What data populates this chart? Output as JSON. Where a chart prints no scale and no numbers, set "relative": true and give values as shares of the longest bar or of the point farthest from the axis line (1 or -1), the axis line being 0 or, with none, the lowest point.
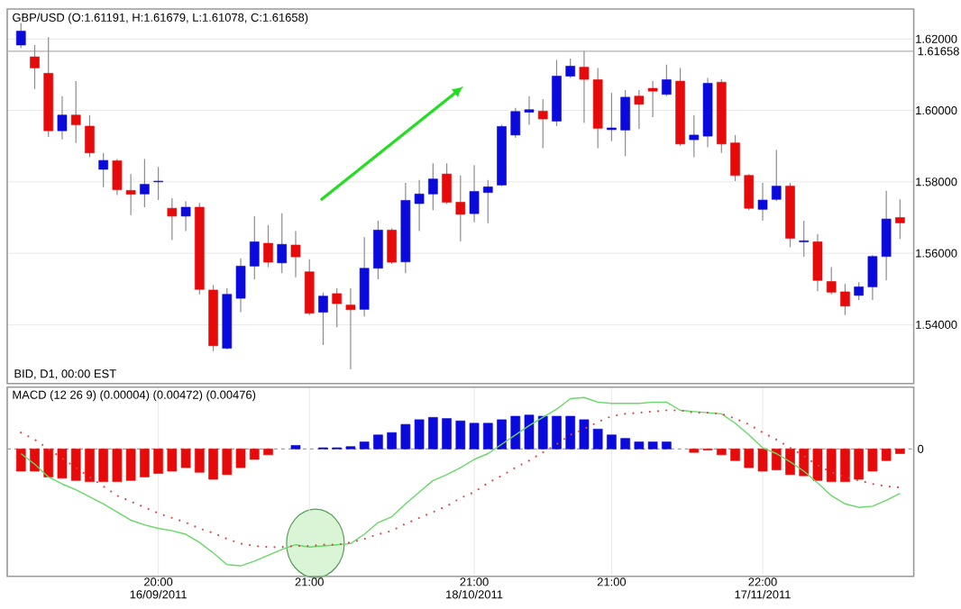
{
  "chart_data": [
    {
      "type": "candlestick",
      "title": "GBP/USD (O:1.61191, H:1.61679, L:1.61078, C:1.61658)",
      "categories": [
        null,
        null,
        null,
        null,
        null,
        null,
        null,
        null,
        null,
        null,
        null,
        null,
        null,
        null,
        null,
        null,
        null,
        null,
        null,
        null,
        null,
        null,
        null,
        null,
        null,
        null,
        null,
        null,
        null,
        null,
        null,
        null,
        null,
        null,
        null,
        null,
        null,
        null,
        null,
        null,
        null,
        null,
        null,
        null,
        null,
        null,
        null,
        null,
        null,
        null,
        null,
        null,
        null,
        null,
        null,
        null,
        null,
        null,
        null,
        null,
        null,
        null,
        null,
        null,
        null
      ],
      "ohlc": [
        [
          1.6183,
          1.6245,
          1.6175,
          1.6222
        ],
        [
          1.615,
          1.6183,
          1.606,
          1.6119
        ],
        [
          1.6104,
          1.6205,
          1.5926,
          1.5943
        ],
        [
          1.5943,
          1.604,
          1.5919,
          1.5987
        ],
        [
          1.5987,
          1.6082,
          1.5909,
          1.596
        ],
        [
          1.5956,
          1.5987,
          1.5869,
          1.5881
        ],
        [
          1.5835,
          1.5881,
          1.5785,
          1.586
        ],
        [
          1.5859,
          1.5864,
          1.5763,
          1.5778
        ],
        [
          1.5776,
          1.5822,
          1.5707,
          1.5765
        ],
        [
          1.5766,
          1.5864,
          1.5729,
          1.5793
        ],
        [
          1.58,
          1.5842,
          1.5749,
          1.5802
        ],
        [
          1.5726,
          1.5754,
          1.5637,
          1.5704
        ],
        [
          1.5704,
          1.5746,
          1.5662,
          1.5729
        ],
        [
          1.5729,
          1.5741,
          1.5485,
          1.5499
        ],
        [
          1.5497,
          1.5511,
          1.5326,
          1.5341
        ],
        [
          1.5334,
          1.5502,
          1.5331,
          1.5485
        ],
        [
          1.5474,
          1.5586,
          1.5435,
          1.5564
        ],
        [
          1.5564,
          1.5704,
          1.5527,
          1.5632
        ],
        [
          1.5628,
          1.5679,
          1.5561,
          1.5575
        ],
        [
          1.5573,
          1.5712,
          1.5544,
          1.5625
        ],
        [
          1.5623,
          1.5662,
          1.5533,
          1.559
        ],
        [
          1.5548,
          1.5583,
          1.5427,
          1.5432
        ],
        [
          1.5435,
          1.549,
          1.5343,
          1.548
        ],
        [
          1.5487,
          1.5502,
          1.5393,
          1.5459
        ],
        [
          1.5455,
          1.5502,
          1.5275,
          1.5442
        ],
        [
          1.5443,
          1.5645,
          1.5423,
          1.5558
        ],
        [
          1.5558,
          1.5691,
          1.5527,
          1.5665
        ],
        [
          1.5665,
          1.567,
          1.557,
          1.5575
        ],
        [
          1.5576,
          1.5797,
          1.5544,
          1.5748
        ],
        [
          1.5739,
          1.5805,
          1.5662,
          1.5766
        ],
        [
          1.5766,
          1.5852,
          1.5721,
          1.5808
        ],
        [
          1.5822,
          1.5852,
          1.5738,
          1.5743
        ],
        [
          1.5743,
          1.5818,
          1.5633,
          1.5709
        ],
        [
          1.5711,
          1.5847,
          1.5687,
          1.5773
        ],
        [
          1.577,
          1.5805,
          1.5684,
          1.5786
        ],
        [
          1.5791,
          1.596,
          1.5788,
          1.5955
        ],
        [
          1.5931,
          1.6007,
          1.5923,
          1.5997
        ],
        [
          1.5995,
          1.604,
          1.596,
          1.6002
        ],
        [
          1.5998,
          1.6032,
          1.5894,
          1.5976
        ],
        [
          1.597,
          1.6141,
          1.5956,
          1.6096
        ],
        [
          1.6096,
          1.6145,
          1.6091,
          1.6124
        ],
        [
          1.6121,
          1.6166,
          1.5965,
          1.6087
        ],
        [
          1.6086,
          1.6119,
          1.5894,
          1.595
        ],
        [
          1.5946,
          1.6049,
          1.5914,
          1.5951
        ],
        [
          1.5945,
          1.6057,
          1.5872,
          1.6037
        ],
        [
          1.604,
          1.6057,
          1.5948,
          1.6017
        ],
        [
          1.6062,
          1.6082,
          1.5981,
          1.6054
        ],
        [
          1.6045,
          1.6128,
          1.604,
          1.6086
        ],
        [
          1.6082,
          1.6119,
          1.5901,
          1.5906
        ],
        [
          1.5918,
          1.5987,
          1.5869,
          1.5931
        ],
        [
          1.5928,
          1.6091,
          1.5897,
          1.6076
        ],
        [
          1.6079,
          1.6087,
          1.5881,
          1.5906
        ],
        [
          1.5909,
          1.5931,
          1.5802,
          1.5818
        ],
        [
          1.5818,
          1.5822,
          1.5721,
          1.5726
        ],
        [
          1.5723,
          1.5797,
          1.5691,
          1.5749
        ],
        [
          1.5751,
          1.5889,
          1.5746,
          1.5788
        ],
        [
          1.5788,
          1.5797,
          1.5617,
          1.5642
        ],
        [
          1.5632,
          1.5691,
          1.559,
          1.5635
        ],
        [
          1.5632,
          1.5654,
          1.5494,
          1.5524
        ],
        [
          1.5521,
          1.5561,
          1.5485,
          1.5491
        ],
        [
          1.5492,
          1.5514,
          1.5427,
          1.5452
        ],
        [
          1.5482,
          1.5519,
          1.5469,
          1.5506
        ],
        [
          1.5506,
          1.5595,
          1.5469,
          1.5591
        ],
        [
          1.5591,
          1.5775,
          1.5524,
          1.5696
        ],
        [
          1.57,
          1.5751,
          1.564,
          1.5685
        ]
      ],
      "colors": [
        "#0a0adc",
        "#e60a0a",
        "#e60a0a",
        "#0a0adc",
        "#e60a0a",
        "#e60a0a",
        "#0a0adc",
        "#e60a0a",
        "#e60a0a",
        "#0a0adc",
        "#0a0adc",
        "#e60a0a",
        "#0a0adc",
        "#e60a0a",
        "#e60a0a",
        "#0a0adc",
        "#0a0adc",
        "#0a0adc",
        "#e60a0a",
        "#0a0adc",
        "#e60a0a",
        "#e60a0a",
        "#0a0adc",
        "#e60a0a",
        "#e60a0a",
        "#0a0adc",
        "#0a0adc",
        "#e60a0a",
        "#0a0adc",
        "#0a0adc",
        "#0a0adc",
        "#e60a0a",
        "#e60a0a",
        "#0a0adc",
        "#0a0adc",
        "#0a0adc",
        "#0a0adc",
        "#0a0adc",
        "#e60a0a",
        "#0a0adc",
        "#0a0adc",
        "#e60a0a",
        "#e60a0a",
        "#0a0adc",
        "#0a0adc",
        "#e60a0a",
        "#e60a0a",
        "#0a0adc",
        "#e60a0a",
        "#0a0adc",
        "#0a0adc",
        "#e60a0a",
        "#e60a0a",
        "#e60a0a",
        "#0a0adc",
        "#0a0adc",
        "#e60a0a",
        "#0a0adc",
        "#e60a0a",
        "#e60a0a",
        "#e60a0a",
        "#0a0adc",
        "#0a0adc",
        "#0a0adc",
        "#e60a0a"
      ],
      "ylim": [
        1.5235,
        1.6284
      ],
      "yticks": [
        {
          "value": 1.54,
          "label": "1.54000"
        },
        {
          "value": 1.56,
          "label": "1.56000"
        },
        {
          "value": 1.58,
          "label": "1.58000"
        },
        {
          "value": 1.6,
          "label": "1.60000"
        },
        {
          "value": 1.62,
          "label": "1.62000"
        }
      ],
      "tick_labels": "y",
      "grid": "y",
      "ref_lines": [
        {
          "axis": "y",
          "value": 1.61658,
          "label": "1.61658",
          "color": "#b0b0b0",
          "line_style": "solid"
        }
      ],
      "annotations": [
        "BID, D1, 00:00 EST"
      ]
    },
    {
      "type": "bar",
      "title": "MACD (12 26 9) (0.00004) (0.00472) (0.00476)",
      "relative": true,
      "categories": [
        null,
        null,
        null,
        null,
        null,
        null,
        null,
        null,
        null,
        null,
        "20:00 16/09/2011",
        null,
        null,
        null,
        null,
        null,
        null,
        null,
        null,
        null,
        null,
        "21:00",
        null,
        null,
        null,
        null,
        null,
        null,
        null,
        null,
        null,
        null,
        null,
        "21:00 18/10/2011",
        null,
        null,
        null,
        null,
        null,
        null,
        null,
        null,
        null,
        "21:00",
        null,
        null,
        null,
        null,
        null,
        null,
        null,
        null,
        null,
        null,
        "22:00 17/11/2011",
        null,
        null,
        null,
        null,
        null,
        null,
        null,
        null,
        null,
        null
      ],
      "grid": "x",
      "series": [
        {
          "type": "bar",
          "values": [
            -0.19,
            -0.19,
            -0.24,
            -0.25,
            -0.27,
            -0.28,
            -0.28,
            -0.28,
            -0.27,
            -0.24,
            -0.21,
            -0.19,
            -0.16,
            -0.2,
            -0.26,
            -0.22,
            -0.16,
            -0.09,
            -0.05,
            null,
            0.03,
            null,
            0.01,
            0.01,
            0.02,
            0.06,
            0.12,
            0.14,
            0.21,
            0.25,
            0.27,
            0.26,
            0.24,
            0.22,
            0.22,
            0.25,
            0.28,
            0.29,
            0.28,
            0.28,
            0.28,
            0.25,
            0.17,
            0.12,
            0.09,
            0.06,
            0.06,
            0.06,
            null,
            -0.03,
            -0.01,
            -0.05,
            -0.1,
            -0.16,
            -0.19,
            -0.18,
            -0.22,
            -0.23,
            -0.27,
            -0.28,
            -0.28,
            -0.26,
            -0.19,
            -0.1,
            -0.04
          ],
          "colors": [
            "#e60a0a",
            "#e60a0a",
            "#e60a0a",
            "#e60a0a",
            "#e60a0a",
            "#e60a0a",
            "#e60a0a",
            "#e60a0a",
            "#e60a0a",
            "#e60a0a",
            "#e60a0a",
            "#e60a0a",
            "#e60a0a",
            "#e60a0a",
            "#e60a0a",
            "#e60a0a",
            "#e60a0a",
            "#e60a0a",
            "#e60a0a",
            null,
            "#0a0adc",
            null,
            "#0a0adc",
            "#0a0adc",
            "#0a0adc",
            "#0a0adc",
            "#0a0adc",
            "#0a0adc",
            "#0a0adc",
            "#0a0adc",
            "#0a0adc",
            "#0a0adc",
            "#0a0adc",
            "#0a0adc",
            "#0a0adc",
            "#0a0adc",
            "#0a0adc",
            "#0a0adc",
            "#0a0adc",
            "#0a0adc",
            "#0a0adc",
            "#0a0adc",
            "#0a0adc",
            "#0a0adc",
            "#0a0adc",
            "#0a0adc",
            "#0a0adc",
            "#0a0adc",
            null,
            "#e60a0a",
            "#e60a0a",
            "#e60a0a",
            "#e60a0a",
            "#e60a0a",
            "#e60a0a",
            "#e60a0a",
            "#e60a0a",
            "#e60a0a",
            "#e60a0a",
            "#e60a0a",
            "#e60a0a",
            "#e60a0a",
            "#e60a0a",
            "#e60a0a",
            "#e60a0a"
          ]
        },
        {
          "type": "line",
          "color": "#66d966",
          "line_style": "solid",
          "values": [
            -0.04,
            -0.13,
            -0.24,
            -0.3,
            -0.35,
            -0.41,
            -0.47,
            -0.54,
            -0.61,
            -0.65,
            -0.68,
            -0.7,
            -0.73,
            -0.8,
            -0.89,
            -0.99,
            -1.0,
            -0.96,
            -0.91,
            -0.86,
            -0.82,
            -0.84,
            -0.83,
            -0.82,
            -0.81,
            -0.73,
            -0.63,
            -0.58,
            -0.47,
            -0.37,
            -0.27,
            -0.22,
            -0.16,
            -0.09,
            -0.04,
            0.04,
            0.12,
            0.2,
            0.27,
            0.34,
            0.43,
            0.44,
            0.4,
            0.39,
            0.39,
            0.39,
            0.4,
            0.4,
            0.33,
            0.32,
            0.31,
            0.3,
            0.22,
            0.12,
            0.01,
            -0.04,
            -0.11,
            -0.19,
            -0.29,
            -0.4,
            -0.47,
            -0.5,
            -0.49,
            -0.44,
            -0.38
          ]
        },
        {
          "type": "line",
          "color": "#d24a4a",
          "line_style": "dotted",
          "values": [
            0.14,
            0.08,
            0.0,
            -0.08,
            -0.16,
            -0.24,
            -0.32,
            -0.4,
            -0.45,
            -0.5,
            -0.55,
            -0.59,
            -0.63,
            -0.68,
            -0.72,
            -0.77,
            -0.81,
            -0.83,
            -0.84,
            -0.84,
            -0.83,
            -0.83,
            -0.82,
            -0.82,
            -0.8,
            -0.77,
            -0.73,
            -0.7,
            -0.64,
            -0.59,
            -0.54,
            -0.49,
            -0.42,
            -0.37,
            -0.29,
            -0.23,
            -0.16,
            -0.1,
            -0.03,
            0.04,
            0.12,
            0.17,
            0.23,
            0.28,
            0.3,
            0.31,
            0.32,
            0.33,
            0.33,
            0.31,
            0.31,
            0.3,
            0.26,
            0.21,
            0.14,
            0.08,
            0.01,
            -0.06,
            -0.14,
            -0.2,
            -0.24,
            -0.27,
            -0.3,
            -0.32,
            -0.33
          ]
        }
      ],
      "ref_lines": [
        {
          "axis": "y",
          "value": 0,
          "label": "0",
          "color": "#a0a0a0",
          "line_style": "dashed"
        }
      ]
    }
  ]
}
